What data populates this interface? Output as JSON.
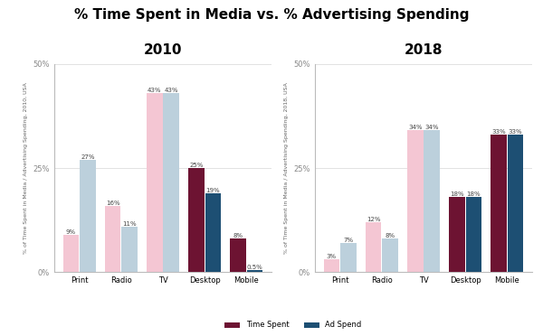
{
  "title": "% Time Spent in Media vs. % Advertising Spending",
  "legend": "lower center",
  "chart_data": [
    {
      "type": "bar",
      "title": "2010",
      "y_label": "% of Time Spent in Media / Advertising Spending, 2010, USA",
      "categories": [
        "Print",
        "Radio",
        "TV",
        "Desktop",
        "Mobile"
      ],
      "series": [
        {
          "name": "Time Spent",
          "color": "#6d1332",
          "colors": [
            "#f4c6d3",
            "#f4c6d3",
            "#f4c6d3",
            "#6d1332",
            "#6d1332"
          ],
          "values": [
            9,
            16,
            43,
            25,
            8
          ],
          "value_labels": [
            "9%",
            "16%",
            "43%",
            "25%",
            "8%"
          ]
        },
        {
          "name": "Ad Spend",
          "color": "#1d4f73",
          "colors": [
            "#bcd0dc",
            "#bcd0dc",
            "#bcd0dc",
            "#1d4f73",
            "#1d4f73"
          ],
          "values": [
            27,
            11,
            43,
            19,
            0.5
          ],
          "value_labels": [
            "27%",
            "11%",
            "43%",
            "19%",
            "0.5%"
          ]
        }
      ],
      "ylim": [
        0,
        50
      ],
      "yticks": [
        {
          "value": 0,
          "label": "0%"
        },
        {
          "value": 25,
          "label": "25%"
        },
        {
          "value": 50,
          "label": "50%"
        }
      ],
      "grid": true,
      "data_labels": true
    },
    {
      "type": "bar",
      "title": "2018",
      "y_label": "% of Time Spent in Media / Advertising Spending, 2018, USA",
      "categories": [
        "Print",
        "Radio",
        "TV",
        "Desktop",
        "Mobile"
      ],
      "series": [
        {
          "name": "Time Spent",
          "color": "#6d1332",
          "colors": [
            "#f4c6d3",
            "#f4c6d3",
            "#f4c6d3",
            "#6d1332",
            "#6d1332"
          ],
          "values": [
            3,
            12,
            34,
            18,
            33
          ],
          "value_labels": [
            "3%",
            "12%",
            "34%",
            "18%",
            "33%"
          ]
        },
        {
          "name": "Ad Spend",
          "color": "#1d4f73",
          "colors": [
            "#bcd0dc",
            "#bcd0dc",
            "#bcd0dc",
            "#1d4f73",
            "#1d4f73"
          ],
          "values": [
            7,
            8,
            34,
            18,
            33
          ],
          "value_labels": [
            "7%",
            "8%",
            "34%",
            "18%",
            "33%"
          ]
        }
      ],
      "ylim": [
        0,
        50
      ],
      "yticks": [
        {
          "value": 0,
          "label": "0%"
        },
        {
          "value": 25,
          "label": "25%"
        },
        {
          "value": 50,
          "label": "50%"
        }
      ],
      "grid": true,
      "data_labels": true
    }
  ]
}
